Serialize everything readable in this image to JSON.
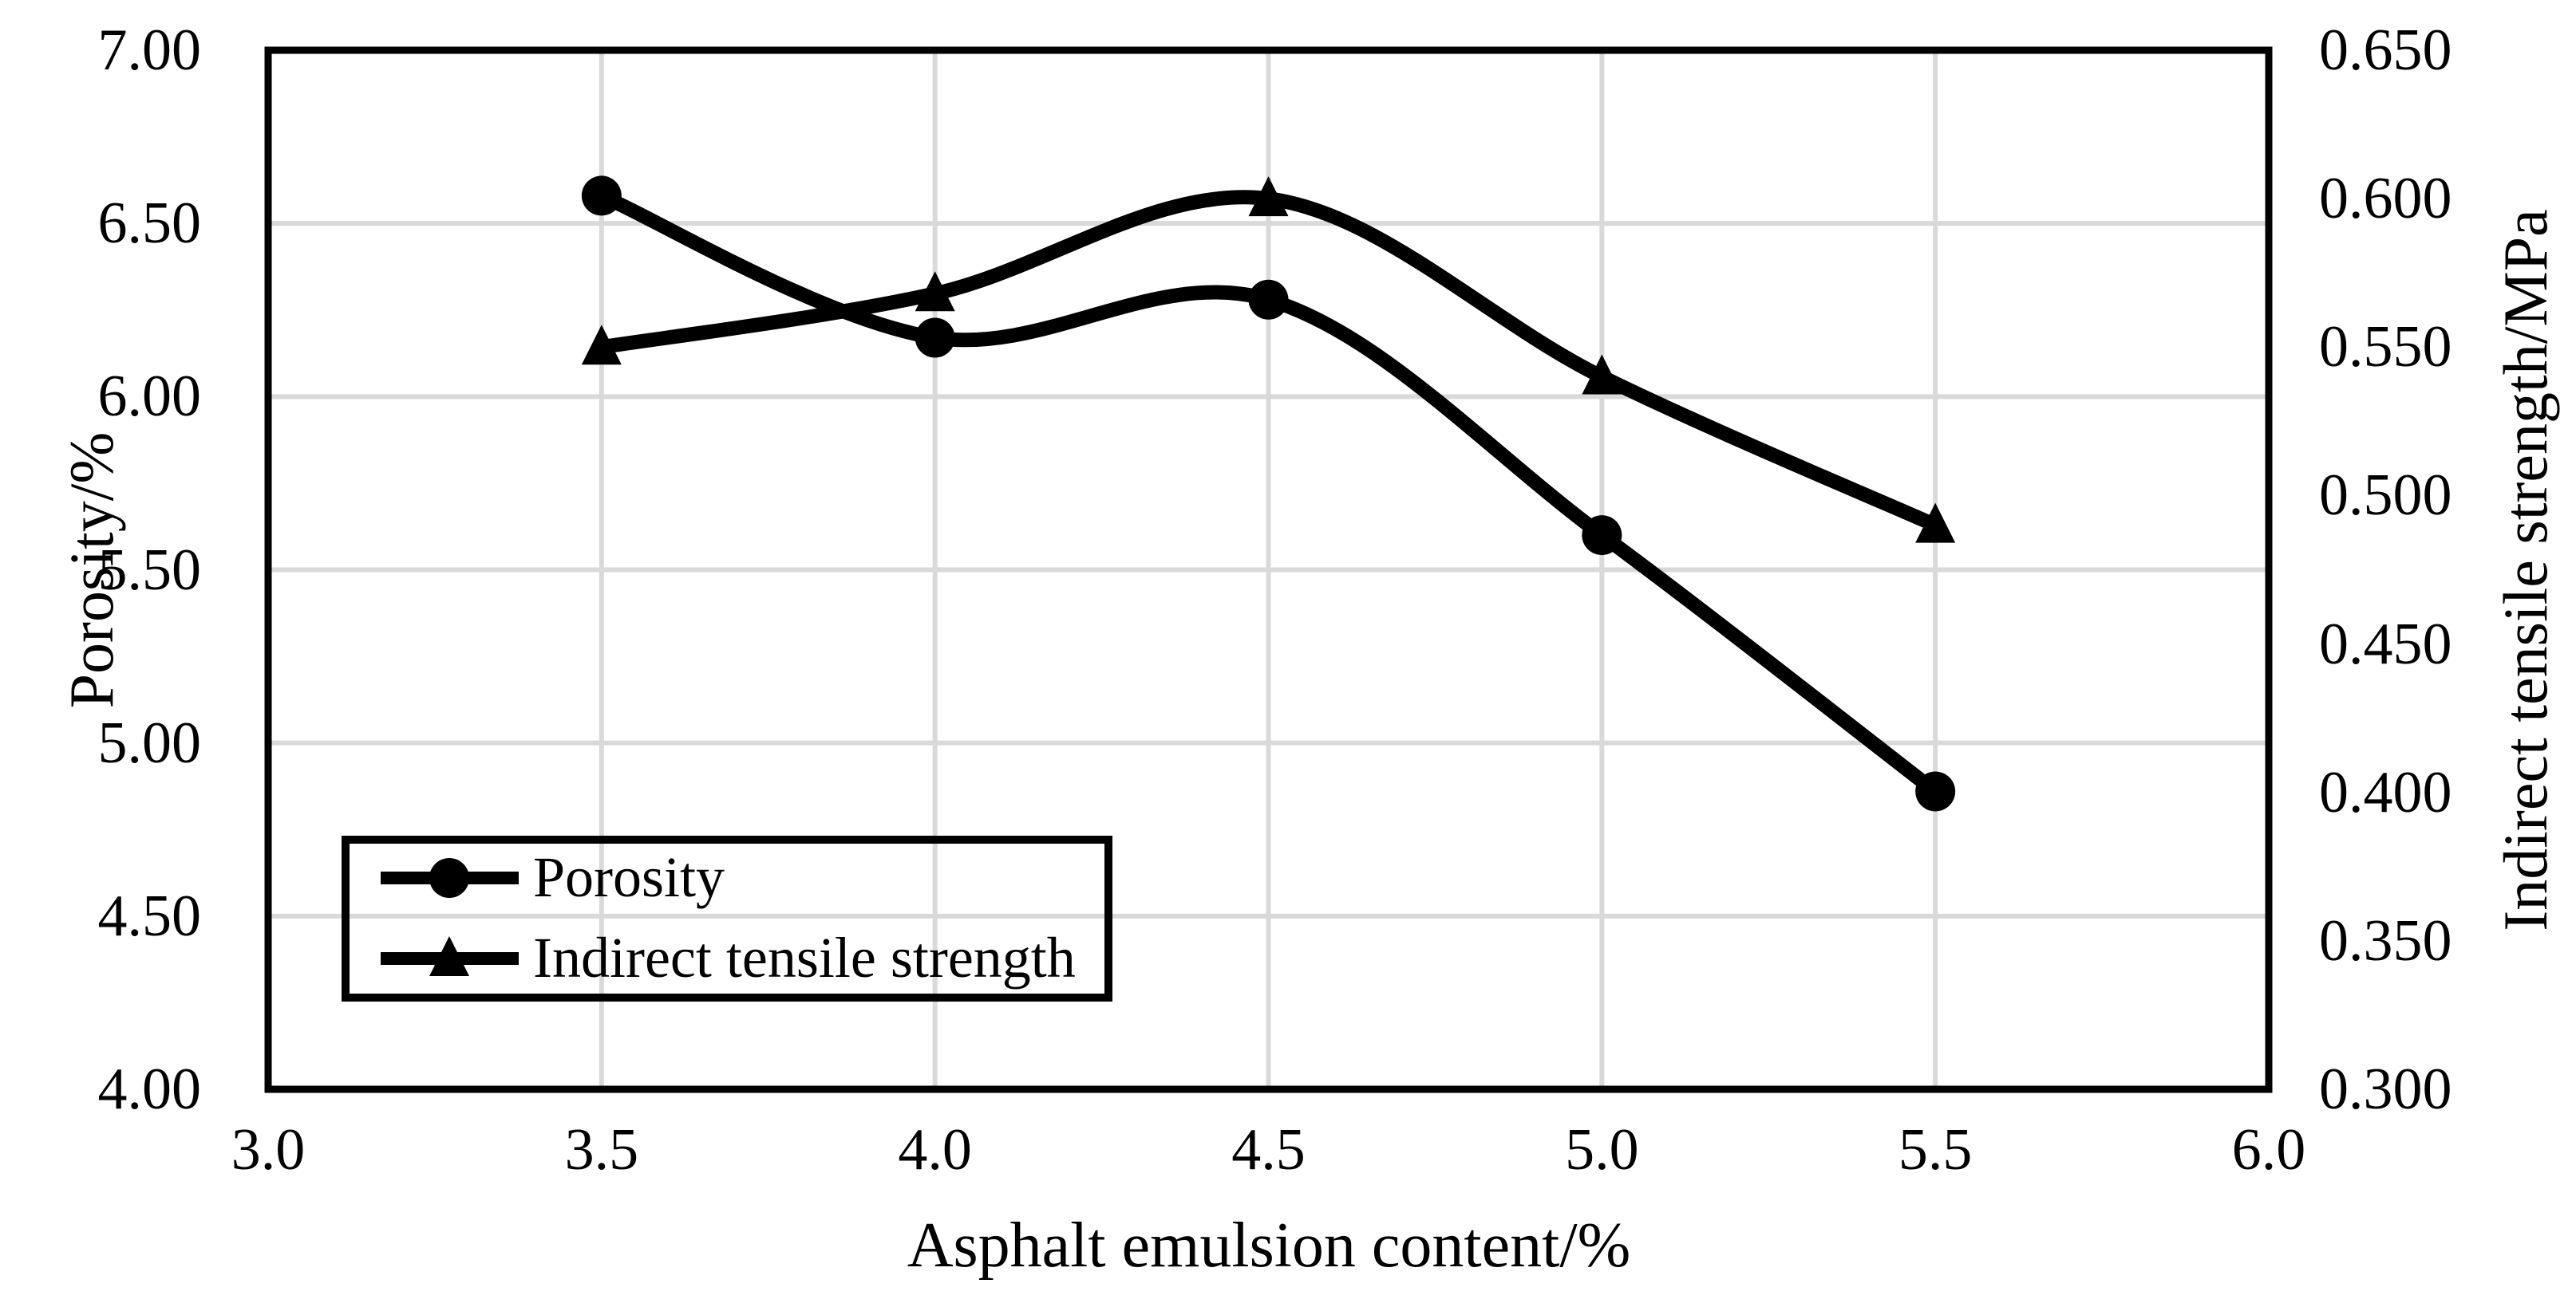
{
  "page": {
    "background": "#ffffff"
  },
  "chart_data": {
    "type": "line",
    "title": "",
    "x": [
      3.5,
      4.0,
      4.5,
      5.0,
      5.5
    ],
    "xlabel": "Asphalt emulsion content/%",
    "ylabel_left": "Porosity/%",
    "ylabel_right": "Indirect tensile strength/MPa",
    "xlim": [
      3.0,
      6.0
    ],
    "ylim_left": [
      4.0,
      7.0
    ],
    "ylim_right": [
      0.3,
      0.65
    ],
    "xticks": [
      "3.0",
      "3.5",
      "4.0",
      "4.5",
      "5.0",
      "5.5",
      "6.0"
    ],
    "yticks_left": [
      "7.00",
      "6.50",
      "6.00",
      "5.50",
      "5.00",
      "4.50",
      "4.00"
    ],
    "yticks_right": [
      "0.650",
      "0.600",
      "0.550",
      "0.500",
      "0.450",
      "0.400",
      "0.350",
      "0.300"
    ],
    "grid": true,
    "smooth": true,
    "legend_position": "lower-left",
    "colors": {
      "series": "#000000",
      "gridline": "#d9d9d9",
      "border": "#000000",
      "background": "#ffffff"
    },
    "series": [
      {
        "name": "Porosity",
        "axis": "left",
        "marker": "circle",
        "values": [
          6.58,
          6.17,
          6.28,
          5.6,
          4.86
        ]
      },
      {
        "name": "Indirect tensile strength",
        "axis": "right",
        "marker": "triangle",
        "values": [
          0.55,
          0.568,
          0.6,
          0.54,
          0.49
        ]
      }
    ]
  }
}
